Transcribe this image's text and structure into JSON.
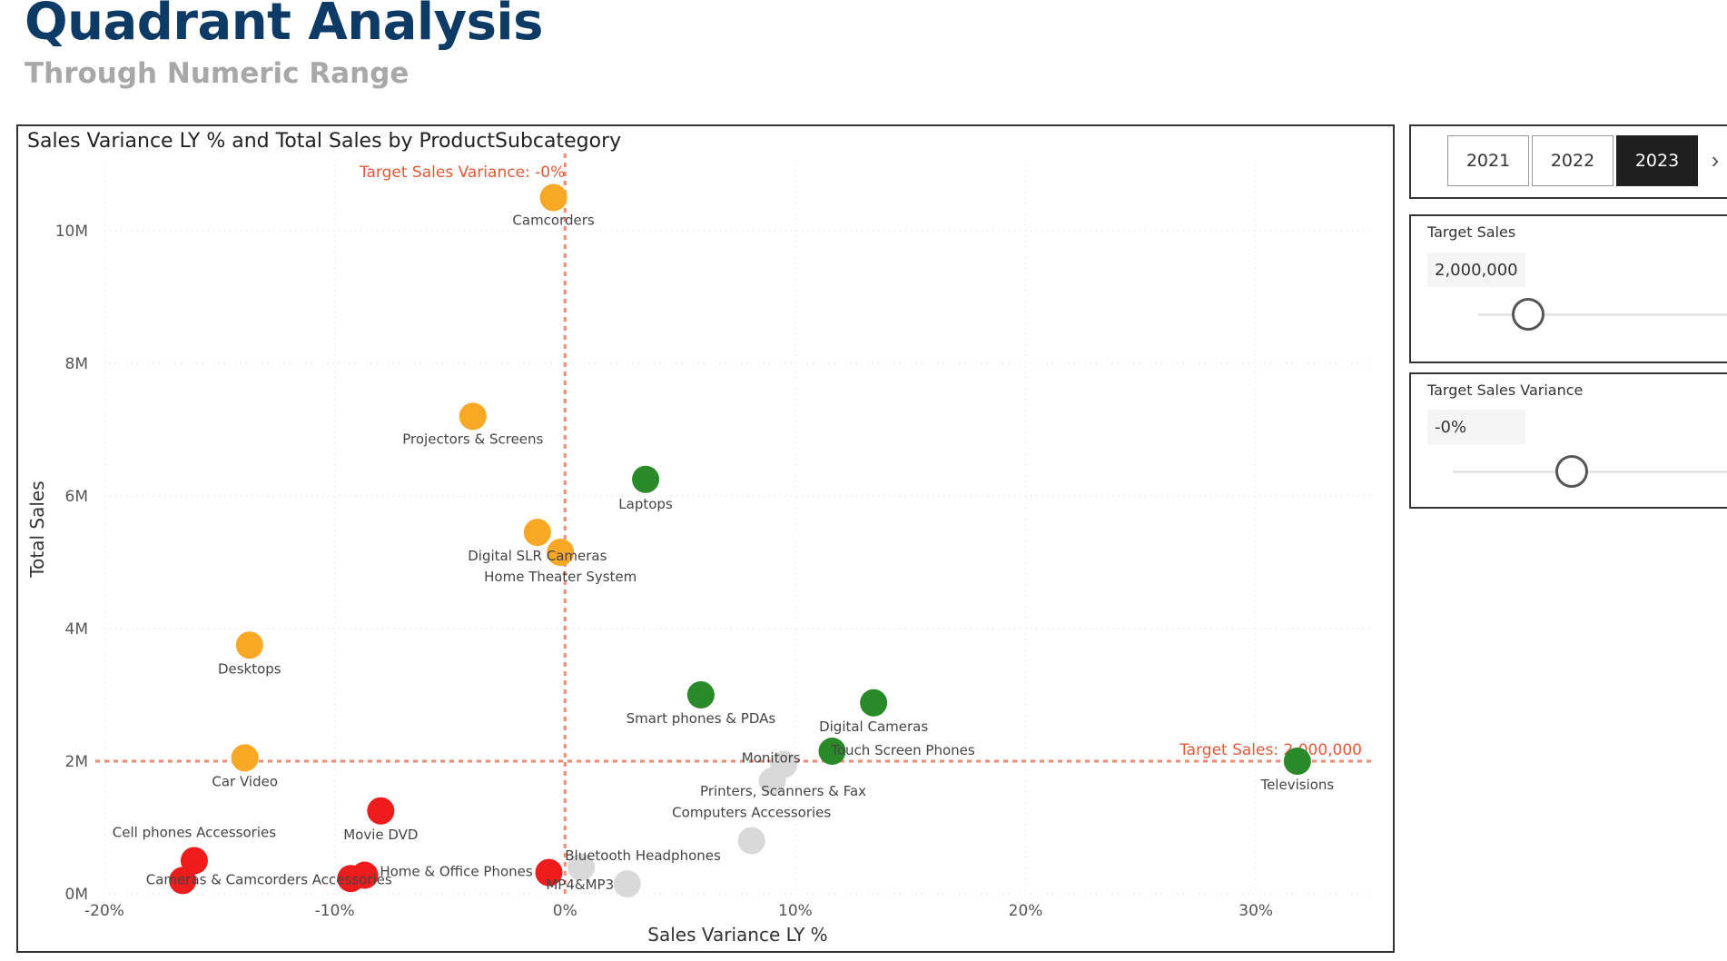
{
  "header": {
    "title": "Quadrant Analysis",
    "subtitle": "Through Numeric Range"
  },
  "year_slicer": {
    "options": [
      "2021",
      "2022",
      "2023"
    ],
    "selected": "2023"
  },
  "target_sales": {
    "label": "Target Sales",
    "value": "2,000,000",
    "slider_level": 0.2
  },
  "target_variance": {
    "label": "Target Sales Variance",
    "value": "-0%",
    "slider_level": 0.43
  },
  "colors": {
    "orange": "#f9a825",
    "green": "#2a8a2a",
    "red": "#ee1c1c",
    "gray": "#d9d9d9",
    "refline": "#f08a73",
    "reflabel": "#e05a3a"
  },
  "chart_data": {
    "type": "scatter",
    "title": "Sales Variance LY % and Total Sales by ProductSubcategory",
    "xlabel": "Sales Variance LY %",
    "ylabel": "Total Sales",
    "xlim": [
      -20,
      35
    ],
    "ylim": [
      0,
      11
    ],
    "x_ticks": [
      -20,
      -10,
      0,
      10,
      20,
      30
    ],
    "x_tick_labels": [
      "-20%",
      "-10%",
      "0%",
      "10%",
      "20%",
      "30%"
    ],
    "y_ticks": [
      0,
      2,
      4,
      6,
      8,
      10
    ],
    "y_tick_labels": [
      "0M",
      "2M",
      "4M",
      "6M",
      "8M",
      "10M"
    ],
    "grid": true,
    "reference_lines": [
      {
        "axis": "x",
        "value": 0,
        "label": "Target Sales Variance: -0%"
      },
      {
        "axis": "y",
        "value": 2,
        "label": "Target Sales: 2,000,000"
      }
    ],
    "points": [
      {
        "label": "Camcorders",
        "x": -0.5,
        "y": 10.5,
        "color": "orange",
        "show_label": true,
        "lx": 0,
        "ly": 30
      },
      {
        "label": "Projectors & Screens",
        "x": -4,
        "y": 7.2,
        "color": "orange",
        "show_label": true,
        "lx": 0,
        "ly": 30
      },
      {
        "label": "Laptops",
        "x": 3.5,
        "y": 6.25,
        "color": "green",
        "show_label": true,
        "lx": 0,
        "ly": 32
      },
      {
        "label": "Digital SLR Cameras",
        "x": -1.2,
        "y": 5.45,
        "color": "orange",
        "show_label": true,
        "lx": 0,
        "ly": 31
      },
      {
        "label": "Home Theater System",
        "x": -0.2,
        "y": 5.15,
        "color": "orange",
        "show_label": true,
        "lx": 0,
        "ly": 32
      },
      {
        "label": "Desktops",
        "x": -13.7,
        "y": 3.75,
        "color": "orange",
        "show_label": true,
        "lx": 0,
        "ly": 31
      },
      {
        "label": "Smart phones & PDAs",
        "x": 5.9,
        "y": 3.0,
        "color": "green",
        "show_label": true,
        "lx": 0,
        "ly": 31
      },
      {
        "label": "Digital Cameras",
        "x": 13.4,
        "y": 2.88,
        "color": "green",
        "show_label": true,
        "lx": 0,
        "ly": 31
      },
      {
        "label": "Touch Screen Phones",
        "x": 11.6,
        "y": 2.15,
        "color": "green",
        "show_label": true,
        "lx": 78,
        "ly": 4
      },
      {
        "label": "Televisions",
        "x": 31.8,
        "y": 2.0,
        "color": "green",
        "show_label": true,
        "lx": 0,
        "ly": 31
      },
      {
        "label": "Car Video",
        "x": -13.9,
        "y": 2.05,
        "color": "orange",
        "show_label": true,
        "lx": 0,
        "ly": 31
      },
      {
        "label": "Monitors",
        "x": 9.5,
        "y": 1.95,
        "color": "gray",
        "show_label": true,
        "lx": -14,
        "ly": -2
      },
      {
        "label": "Printers, Scanners & Fax",
        "x": 9.0,
        "y": 1.7,
        "color": "gray",
        "show_label": true,
        "lx": 12,
        "ly": 16
      },
      {
        "label": "Computers Accessories",
        "x": 8.1,
        "y": 0.8,
        "color": "gray",
        "show_label": true,
        "lx": 0,
        "ly": -26
      },
      {
        "label": "Movie DVD",
        "x": -8.0,
        "y": 1.25,
        "color": "red",
        "show_label": true,
        "lx": 0,
        "ly": 31
      },
      {
        "label": "Cell phones Accessories",
        "x": -16.1,
        "y": 0.5,
        "color": "red",
        "show_label": true,
        "lx": 0,
        "ly": -26
      },
      {
        "label": "Cameras & Camcorders Accessories",
        "x": -16.6,
        "y": 0.2,
        "color": "red",
        "show_label": true,
        "lx": 95,
        "ly": 4
      },
      {
        "label": "",
        "x": -9.3,
        "y": 0.23,
        "color": "red",
        "show_label": false
      },
      {
        "label": "",
        "x": -8.7,
        "y": 0.28,
        "color": "red",
        "show_label": false
      },
      {
        "label": "Home & Office Phones",
        "x": -0.7,
        "y": 0.32,
        "color": "red",
        "show_label": true,
        "lx": -102,
        "ly": 4
      },
      {
        "label": "Bluetooth Headphones",
        "x": 0.7,
        "y": 0.4,
        "color": "gray",
        "show_label": true,
        "lx": 68,
        "ly": -8
      },
      {
        "label": "MP4&MP3",
        "x": 2.7,
        "y": 0.15,
        "color": "gray",
        "show_label": true,
        "lx": -52,
        "ly": 6
      }
    ]
  }
}
